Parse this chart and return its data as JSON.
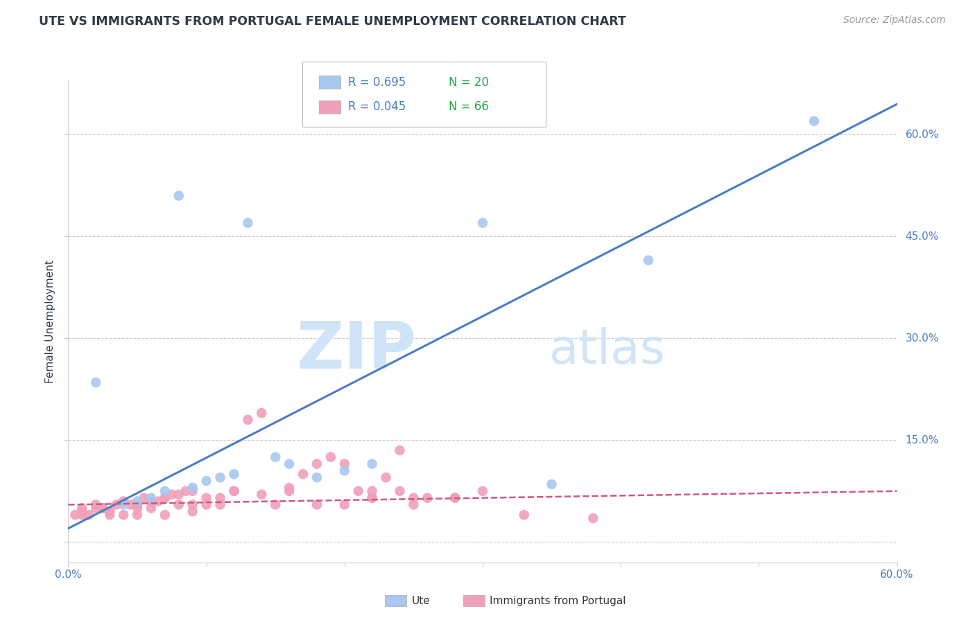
{
  "title": "UTE VS IMMIGRANTS FROM PORTUGAL FEMALE UNEMPLOYMENT CORRELATION CHART",
  "source": "Source: ZipAtlas.com",
  "ylabel": "Female Unemployment",
  "xmin": 0.0,
  "xmax": 0.6,
  "ymin": -0.03,
  "ymax": 0.68,
  "legend_blue_R": "R = 0.695",
  "legend_blue_N": "N = 20",
  "legend_pink_R": "R = 0.045",
  "legend_pink_N": "N = 66",
  "blue_color": "#a8c8f0",
  "pink_color": "#f0a0b8",
  "trendline_blue_color": "#4a7cc4",
  "trendline_pink_color": "#d05878",
  "trendline_blue_x0": 0.0,
  "trendline_blue_y0": 0.02,
  "trendline_blue_x1": 0.6,
  "trendline_blue_y1": 0.645,
  "trendline_pink_x0": 0.0,
  "trendline_pink_y0": 0.055,
  "trendline_pink_x1": 0.6,
  "trendline_pink_y1": 0.075,
  "watermark_zip": "ZIP",
  "watermark_atlas": "atlas",
  "watermark_color": "#d0e4f8",
  "blue_scatter_x": [
    0.08,
    0.13,
    0.3,
    0.54,
    0.02,
    0.04,
    0.05,
    0.06,
    0.07,
    0.09,
    0.1,
    0.11,
    0.12,
    0.15,
    0.18,
    0.2,
    0.22,
    0.35,
    0.16,
    0.42
  ],
  "blue_scatter_y": [
    0.51,
    0.47,
    0.47,
    0.62,
    0.235,
    0.055,
    0.06,
    0.065,
    0.075,
    0.08,
    0.09,
    0.095,
    0.1,
    0.125,
    0.095,
    0.105,
    0.115,
    0.085,
    0.115,
    0.415
  ],
  "pink_scatter_x": [
    0.005,
    0.01,
    0.015,
    0.02,
    0.025,
    0.03,
    0.035,
    0.04,
    0.045,
    0.05,
    0.055,
    0.06,
    0.065,
    0.07,
    0.075,
    0.08,
    0.085,
    0.09,
    0.01,
    0.02,
    0.025,
    0.03,
    0.04,
    0.05,
    0.06,
    0.07,
    0.08,
    0.09,
    0.1,
    0.11,
    0.12,
    0.13,
    0.14,
    0.15,
    0.16,
    0.17,
    0.18,
    0.19,
    0.2,
    0.21,
    0.22,
    0.23,
    0.24,
    0.25,
    0.1,
    0.12,
    0.14,
    0.16,
    0.18,
    0.2,
    0.22,
    0.24,
    0.26,
    0.28,
    0.3,
    0.22,
    0.25,
    0.28,
    0.33,
    0.38,
    0.01,
    0.03,
    0.05,
    0.07,
    0.09,
    0.11
  ],
  "pink_scatter_y": [
    0.04,
    0.05,
    0.04,
    0.055,
    0.05,
    0.045,
    0.055,
    0.06,
    0.055,
    0.055,
    0.065,
    0.06,
    0.06,
    0.065,
    0.07,
    0.07,
    0.075,
    0.075,
    0.045,
    0.05,
    0.05,
    0.045,
    0.04,
    0.04,
    0.05,
    0.065,
    0.055,
    0.045,
    0.055,
    0.065,
    0.075,
    0.18,
    0.19,
    0.055,
    0.08,
    0.1,
    0.115,
    0.125,
    0.115,
    0.075,
    0.065,
    0.095,
    0.135,
    0.055,
    0.065,
    0.075,
    0.07,
    0.075,
    0.055,
    0.055,
    0.075,
    0.075,
    0.065,
    0.065,
    0.075,
    0.065,
    0.065,
    0.065,
    0.04,
    0.035,
    0.04,
    0.04,
    0.05,
    0.04,
    0.055,
    0.055
  ],
  "grid_color": "#cccccc",
  "background_color": "#ffffff",
  "title_color": "#2d3a4a",
  "axis_color": "#4a7cc4",
  "legend_R_color": "#4a7cc4",
  "legend_N_color": "#22aa44"
}
